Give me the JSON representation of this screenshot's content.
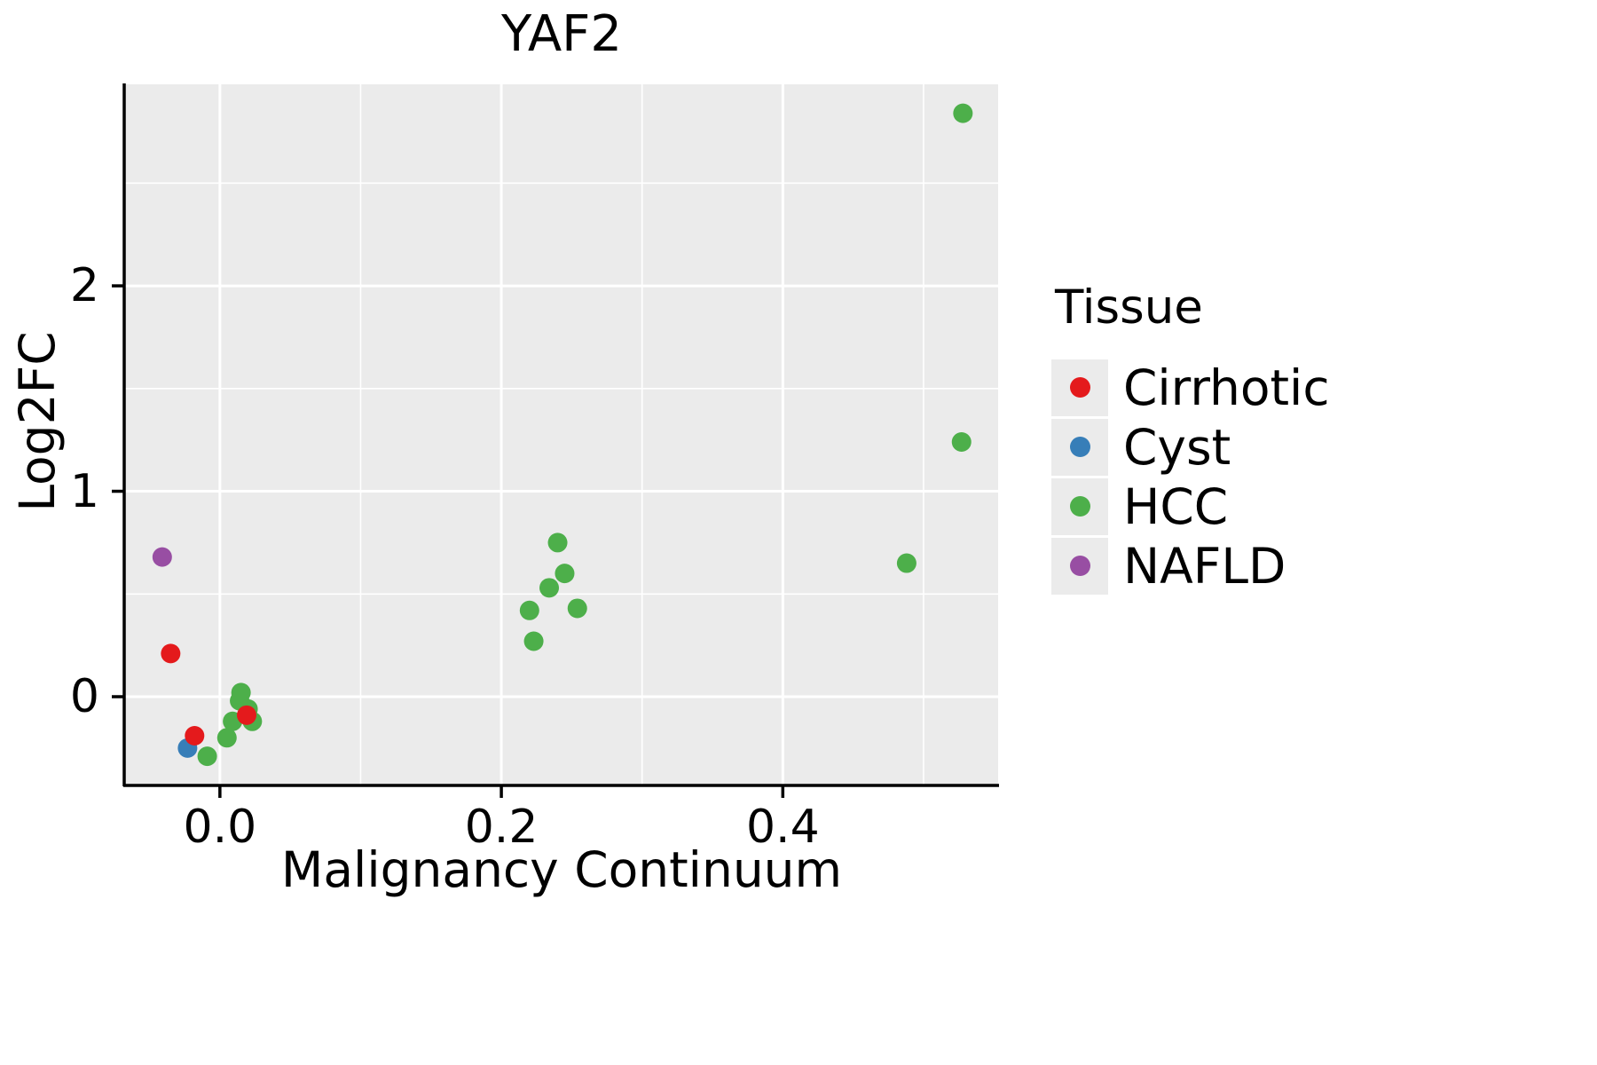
{
  "chart_data": {
    "type": "scatter",
    "title": "YAF2",
    "xlabel": "Malignancy Continuum",
    "ylabel": "Log2FC",
    "xlim": [
      -0.068,
      0.553
    ],
    "ylim": [
      -0.432,
      2.981
    ],
    "x_ticks": [
      0.0,
      0.2,
      0.4
    ],
    "x_tick_labels": [
      "0.0",
      "0.2",
      "0.4"
    ],
    "y_ticks": [
      0,
      1,
      2
    ],
    "y_tick_labels": [
      "0",
      "1",
      "2"
    ],
    "x_minor_ticks": [
      0.1,
      0.3,
      0.5
    ],
    "y_minor_ticks": [
      0.5,
      1.5,
      2.5
    ],
    "grid": true,
    "panel_bg": "#EBEBEB",
    "grid_color": "#FFFFFF",
    "axis_color": "#000000",
    "legend_title": "Tissue",
    "legend_position": "right",
    "draw_order": [
      "HCC",
      "Cyst",
      "NAFLD",
      "Cirrhotic"
    ],
    "series": [
      {
        "name": "Cirrhotic",
        "color": "#E41A1C",
        "points": [
          [
            -0.035,
            0.21
          ],
          [
            -0.018,
            -0.19
          ],
          [
            0.019,
            -0.09
          ]
        ]
      },
      {
        "name": "Cyst",
        "color": "#377EB8",
        "points": [
          [
            -0.023,
            -0.25
          ]
        ]
      },
      {
        "name": "HCC",
        "color": "#4DAF4A",
        "points": [
          [
            -0.009,
            -0.29
          ],
          [
            0.005,
            -0.2
          ],
          [
            0.009,
            -0.12
          ],
          [
            0.014,
            -0.02
          ],
          [
            0.015,
            0.02
          ],
          [
            0.02,
            -0.06
          ],
          [
            0.023,
            -0.12
          ],
          [
            0.22,
            0.42
          ],
          [
            0.223,
            0.27
          ],
          [
            0.234,
            0.53
          ],
          [
            0.24,
            0.75
          ],
          [
            0.245,
            0.6
          ],
          [
            0.254,
            0.43
          ],
          [
            0.488,
            0.65
          ],
          [
            0.527,
            1.24
          ],
          [
            0.528,
            2.84
          ]
        ]
      },
      {
        "name": "NAFLD",
        "color": "#984EA3",
        "points": [
          [
            -0.041,
            0.68
          ]
        ]
      }
    ]
  }
}
